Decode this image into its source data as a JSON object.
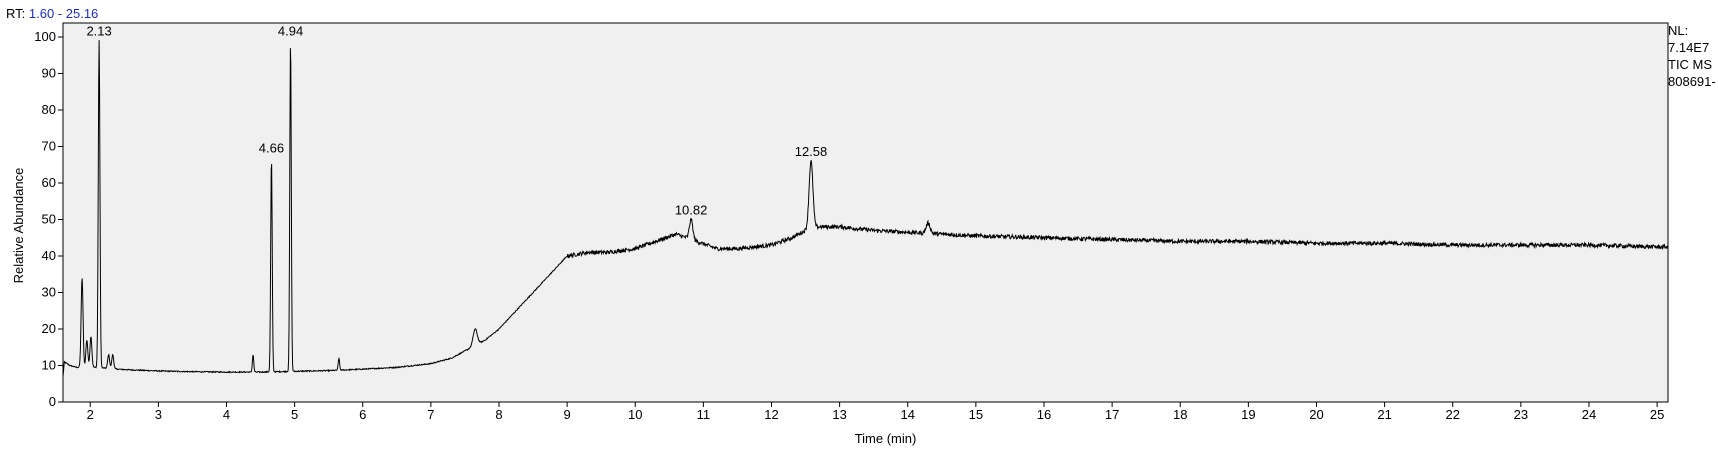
{
  "header": {
    "rt_prefix": "RT:",
    "rt_range": "1.60 - 25.16"
  },
  "side_info": {
    "nl_label": "NL:",
    "nl_value": "7.14E7",
    "trace_label": "TIC  MS",
    "file_id": "808691-"
  },
  "colors": {
    "plot_background": "#f0f0f0",
    "trace": "#000000",
    "rt_range_text": "#1f2fb8"
  },
  "chart_data": {
    "type": "line",
    "title": "",
    "xlabel": "Time (min)",
    "ylabel": "Relative Abundance",
    "xlim": [
      1.6,
      25.16
    ],
    "ylim": [
      0,
      100
    ],
    "x_ticks": [
      2,
      3,
      4,
      5,
      6,
      7,
      8,
      9,
      10,
      11,
      12,
      13,
      14,
      15,
      16,
      17,
      18,
      19,
      20,
      21,
      22,
      23,
      24,
      25
    ],
    "y_ticks": [
      0,
      10,
      20,
      30,
      40,
      50,
      60,
      70,
      80,
      90,
      100
    ],
    "grid": false,
    "legend": "none",
    "baseline_points": [
      [
        1.6,
        7
      ],
      [
        1.62,
        11
      ],
      [
        1.7,
        10
      ],
      [
        1.8,
        9.5
      ],
      [
        1.9,
        9.5
      ],
      [
        2.0,
        9.5
      ],
      [
        2.1,
        9.5
      ],
      [
        2.2,
        9.3
      ],
      [
        2.4,
        9
      ],
      [
        2.6,
        8.8
      ],
      [
        3.0,
        8.5
      ],
      [
        3.5,
        8.3
      ],
      [
        4.0,
        8.2
      ],
      [
        4.5,
        8.2
      ],
      [
        5.0,
        8.4
      ],
      [
        5.5,
        8.6
      ],
      [
        6.0,
        9
      ],
      [
        6.5,
        9.5
      ],
      [
        7.0,
        10.5
      ],
      [
        7.3,
        12
      ],
      [
        7.5,
        14
      ],
      [
        7.8,
        17
      ],
      [
        8.0,
        20
      ],
      [
        8.2,
        24
      ],
      [
        8.4,
        28
      ],
      [
        8.6,
        32
      ],
      [
        8.8,
        36
      ],
      [
        9.0,
        40
      ],
      [
        9.3,
        41
      ],
      [
        9.6,
        41
      ],
      [
        10.0,
        42
      ],
      [
        10.3,
        44
      ],
      [
        10.6,
        46
      ],
      [
        10.9,
        44
      ],
      [
        11.2,
        42
      ],
      [
        11.5,
        42
      ],
      [
        12.0,
        43
      ],
      [
        12.3,
        45
      ],
      [
        12.5,
        47
      ],
      [
        12.7,
        48
      ],
      [
        13.0,
        48
      ],
      [
        13.5,
        47
      ],
      [
        14.0,
        46.5
      ],
      [
        15.0,
        45.5
      ],
      [
        16.0,
        45
      ],
      [
        17.0,
        44.5
      ],
      [
        18.0,
        44
      ],
      [
        19.0,
        44
      ],
      [
        20.0,
        43.5
      ],
      [
        21.0,
        43.5
      ],
      [
        22.0,
        43
      ],
      [
        23.0,
        43
      ],
      [
        24.0,
        43
      ],
      [
        25.0,
        42.5
      ],
      [
        25.16,
        42.5
      ]
    ],
    "peaks": [
      {
        "rt": 1.88,
        "height": 34,
        "width": 0.014
      },
      {
        "rt": 1.95,
        "height": 17,
        "width": 0.014
      },
      {
        "rt": 2.01,
        "height": 18,
        "width": 0.014
      },
      {
        "rt": 2.13,
        "height": 99,
        "width": 0.012
      },
      {
        "rt": 2.27,
        "height": 13,
        "width": 0.014
      },
      {
        "rt": 2.33,
        "height": 13,
        "width": 0.014
      },
      {
        "rt": 4.39,
        "height": 13,
        "width": 0.01
      },
      {
        "rt": 4.66,
        "height": 67,
        "width": 0.011
      },
      {
        "rt": 4.94,
        "height": 99,
        "width": 0.011
      },
      {
        "rt": 5.65,
        "height": 12,
        "width": 0.01
      },
      {
        "rt": 7.65,
        "height": 20,
        "width": 0.03
      },
      {
        "rt": 10.82,
        "height": 50,
        "width": 0.025
      },
      {
        "rt": 12.58,
        "height": 66,
        "width": 0.028
      },
      {
        "rt": 14.3,
        "height": 49,
        "width": 0.03
      }
    ],
    "peak_labels": [
      {
        "rt": 2.13,
        "label": "2.13",
        "y": 99
      },
      {
        "rt": 4.66,
        "label": "4.66",
        "y": 67
      },
      {
        "rt": 4.94,
        "label": "4.94",
        "y": 99
      },
      {
        "rt": 10.82,
        "label": "10.82",
        "y": 50
      },
      {
        "rt": 12.58,
        "label": "12.58",
        "y": 66
      }
    ]
  }
}
